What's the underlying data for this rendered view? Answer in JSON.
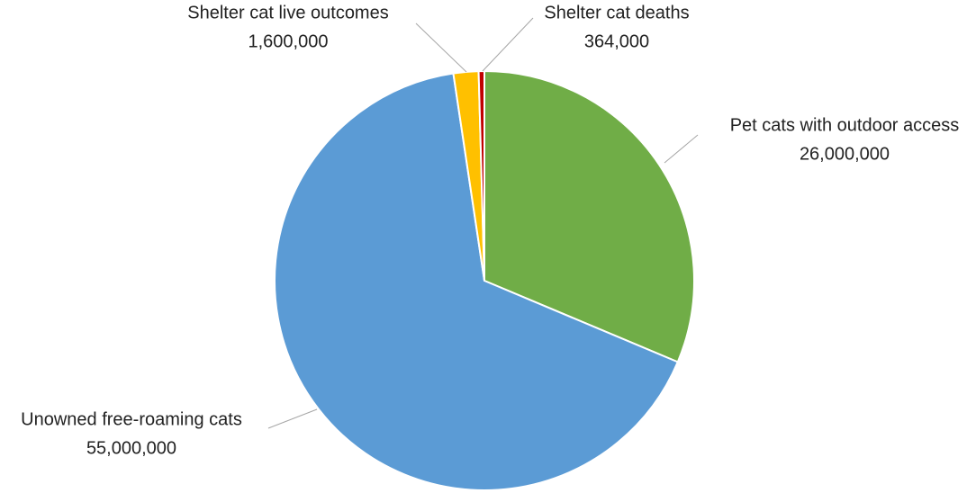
{
  "chart_data": {
    "type": "pie",
    "categories": [
      "Pet cats with outdoor access",
      "Unowned free-roaming cats",
      "Shelter cat live outcomes",
      "Shelter cat deaths"
    ],
    "values": [
      26000000,
      55000000,
      1600000,
      364000
    ],
    "value_labels": [
      "26,000,000",
      "55,000,000",
      "1,600,000",
      "364,000"
    ],
    "colors": [
      "#70ad47",
      "#5b9bd5",
      "#ffc000",
      "#c00000"
    ]
  }
}
